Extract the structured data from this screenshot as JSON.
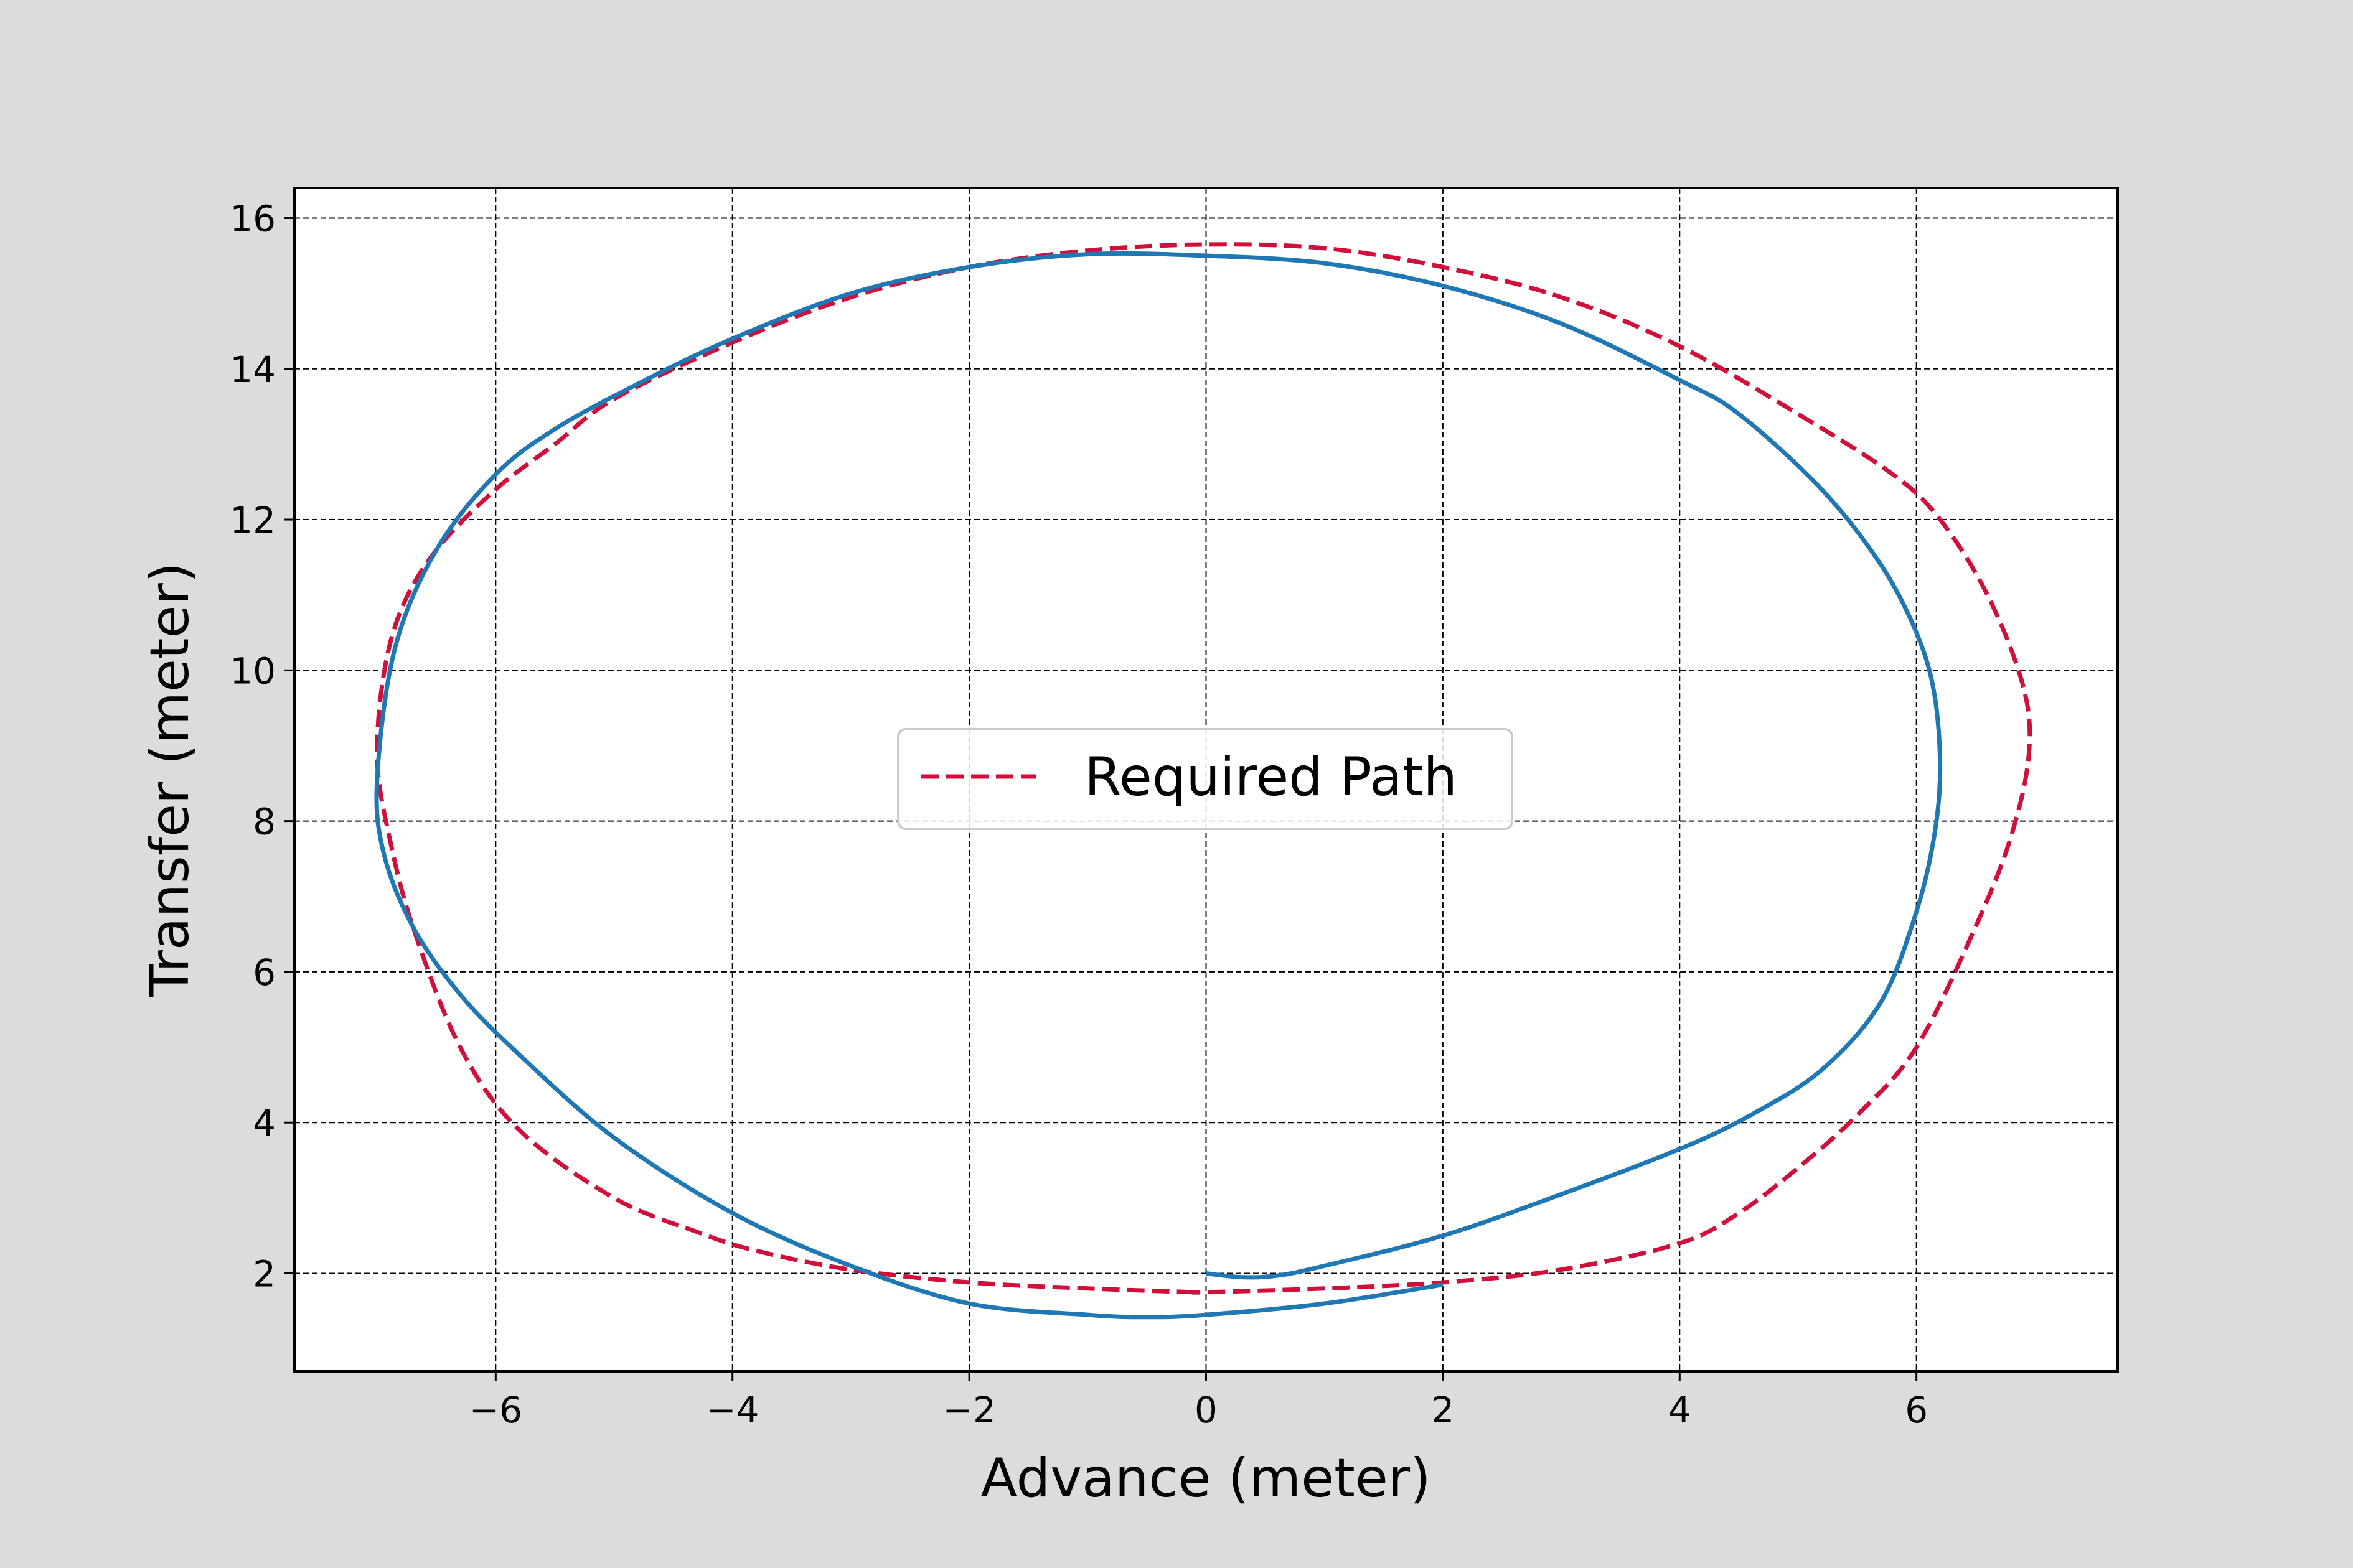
{
  "chart_data": {
    "type": "line",
    "title": "",
    "xlabel": "Advance (meter)",
    "ylabel": "Transfer (meter)",
    "xlim": [
      -7.7,
      7.7
    ],
    "ylim": [
      0.7,
      16.4
    ],
    "xticks": [
      -6,
      -4,
      -2,
      0,
      2,
      4,
      6
    ],
    "yticks": [
      2,
      4,
      6,
      8,
      10,
      12,
      14,
      16
    ],
    "xtick_labels": [
      "−6",
      "−4",
      "−2",
      "0",
      "2",
      "4",
      "6"
    ],
    "ytick_labels": [
      "2",
      "4",
      "6",
      "8",
      "10",
      "12",
      "14",
      "16"
    ],
    "grid": true,
    "legend": {
      "placement": "center",
      "entries": [
        "Required Path"
      ]
    },
    "series": [
      {
        "name": "Required Path",
        "style": "dashed",
        "color": "#d0103a",
        "x": [
          -0.1,
          -1.0,
          -2.0,
          -3.0,
          -3.8,
          -4.3,
          -5.0,
          -5.8,
          -6.3,
          -6.7,
          -6.9,
          -7.0,
          -6.95,
          -6.8,
          -6.5,
          -6.0,
          -5.5,
          -5.0,
          -4.0,
          -3.0,
          -2.0,
          -1.0,
          0.0,
          1.0,
          2.0,
          3.0,
          4.0,
          5.0,
          5.8,
          6.2,
          6.6,
          6.9,
          6.95,
          6.8,
          6.5,
          6.0,
          5.5,
          5.0,
          4.5,
          4.0,
          3.0,
          2.0,
          1.0,
          0.0,
          -0.1
        ],
        "y": [
          1.75,
          1.8,
          1.88,
          2.05,
          2.3,
          2.55,
          3.0,
          3.9,
          5.0,
          6.6,
          7.8,
          8.8,
          9.9,
          10.8,
          11.6,
          12.4,
          13.0,
          13.6,
          14.35,
          14.95,
          15.35,
          15.57,
          15.65,
          15.6,
          15.35,
          14.95,
          14.3,
          13.4,
          12.6,
          12.0,
          11.0,
          9.8,
          8.9,
          7.8,
          6.6,
          5.0,
          4.1,
          3.4,
          2.8,
          2.4,
          2.05,
          1.88,
          1.8,
          1.75,
          1.75
        ]
      },
      {
        "name": "",
        "style": "solid",
        "color": "#1f77b4",
        "x": [
          0.0,
          0.3,
          0.6,
          1.0,
          2.0,
          3.0,
          4.0,
          4.6,
          5.2,
          5.7,
          6.0,
          6.15,
          6.2,
          6.15,
          6.0,
          5.7,
          5.2,
          4.5,
          4.0,
          3.0,
          2.0,
          1.0,
          0.0,
          -1.0,
          -2.0,
          -3.0,
          -4.0,
          -4.8,
          -5.5,
          -6.0,
          -6.5,
          -6.85,
          -7.0,
          -6.95,
          -6.7,
          -6.3,
          -5.8,
          -5.0,
          -4.0,
          -3.0,
          -2.0,
          -1.0,
          -0.5,
          0.0,
          1.0,
          2.0
        ],
        "y": [
          2.0,
          1.95,
          1.97,
          2.1,
          2.5,
          3.05,
          3.65,
          4.1,
          4.7,
          5.6,
          6.8,
          7.8,
          8.7,
          9.7,
          10.5,
          11.4,
          12.4,
          13.4,
          13.85,
          14.6,
          15.1,
          15.4,
          15.5,
          15.52,
          15.35,
          15.0,
          14.4,
          13.8,
          13.2,
          12.6,
          11.6,
          10.3,
          8.6,
          7.6,
          6.6,
          5.7,
          4.9,
          3.8,
          2.8,
          2.1,
          1.6,
          1.45,
          1.42,
          1.45,
          1.6,
          1.85
        ]
      }
    ]
  }
}
